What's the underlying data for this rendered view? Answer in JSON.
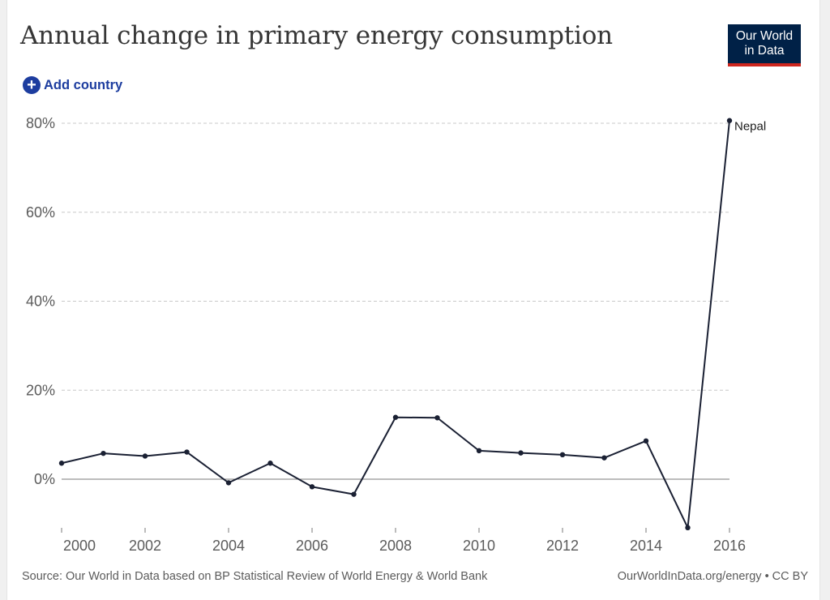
{
  "title": "Annual change in primary energy consumption",
  "logo": {
    "line1": "Our World",
    "line2": "in Data"
  },
  "controls": {
    "add_country_label": "Add country",
    "add_country_icon": "plus-circle-icon"
  },
  "footer": {
    "source": "Source: Our World in Data based on BP Statistical Review of World Energy & World Bank",
    "url_license": "OurWorldInData.org/energy • CC BY"
  },
  "colors": {
    "line": "#1a2033",
    "logo_bg": "#002147",
    "logo_accent": "#ce261e",
    "link": "#1d3d9f"
  },
  "chart_data": {
    "type": "line",
    "title": "Annual change in primary energy consumption",
    "xlabel": "",
    "ylabel": "",
    "xlim": [
      2000,
      2016
    ],
    "ylim": [
      -11,
      80
    ],
    "y_ticks": [
      0,
      20,
      40,
      60,
      80
    ],
    "y_tick_labels": [
      "0%",
      "20%",
      "40%",
      "60%",
      "80%"
    ],
    "x_ticks": [
      2000,
      2002,
      2004,
      2006,
      2008,
      2010,
      2012,
      2014,
      2016
    ],
    "x_tick_labels": [
      "2000",
      "2002",
      "2004",
      "2006",
      "2008",
      "2010",
      "2012",
      "2014",
      "2016"
    ],
    "grid": "horizontal dashed",
    "series": [
      {
        "name": "Nepal",
        "x": [
          2000,
          2001,
          2002,
          2003,
          2004,
          2005,
          2006,
          2007,
          2008,
          2009,
          2010,
          2011,
          2012,
          2013,
          2014,
          2015,
          2016
        ],
        "y": [
          3.6,
          5.8,
          5.2,
          6.1,
          -0.8,
          3.6,
          -1.7,
          -3.4,
          13.9,
          13.8,
          6.4,
          5.9,
          5.5,
          4.8,
          8.6,
          -10.9,
          80.6
        ]
      }
    ]
  }
}
